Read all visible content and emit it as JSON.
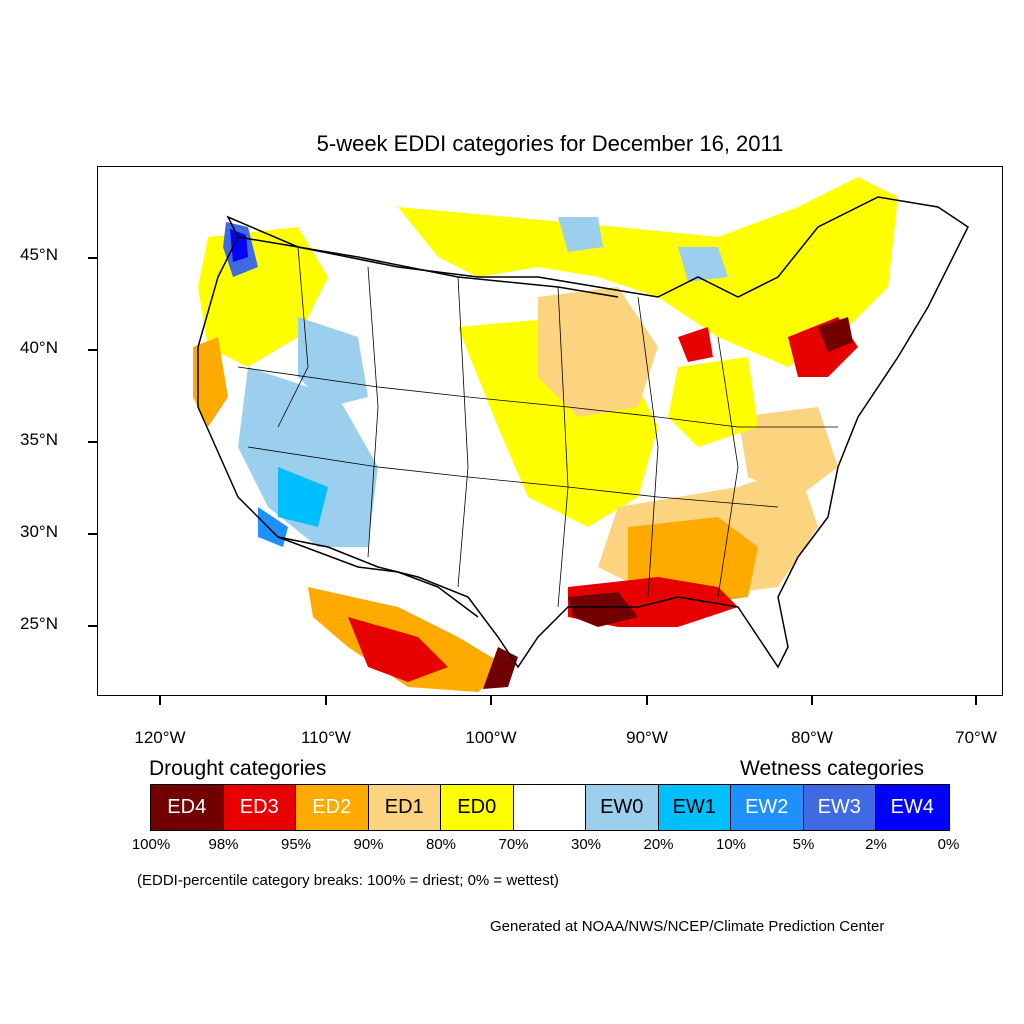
{
  "title": "5-week EDDI categories for December 16, 2011",
  "lat_labels": [
    "45°N",
    "40°N",
    "35°N",
    "30°N",
    "25°N"
  ],
  "lon_labels": [
    "120°W",
    "110°W",
    "100°W",
    "90°W",
    "80°W",
    "70°W"
  ],
  "legend": {
    "drought_heading": "Drought categories",
    "wetness_heading": "Wetness categories",
    "categories": [
      {
        "label": "ED4",
        "color": "#730000",
        "text_color": "#ffffff"
      },
      {
        "label": "ED3",
        "color": "#e60000",
        "text_color": "#ffffff"
      },
      {
        "label": "ED2",
        "color": "#ffaa00",
        "text_color": "#ffffff"
      },
      {
        "label": "ED1",
        "color": "#fcd37f",
        "text_color": "#000000"
      },
      {
        "label": "ED0",
        "color": "#ffff00",
        "text_color": "#000000"
      },
      {
        "label": "",
        "color": "#ffffff",
        "text_color": "#000000"
      },
      {
        "label": "EW0",
        "color": "#9ccfee",
        "text_color": "#000000"
      },
      {
        "label": "EW1",
        "color": "#00bfff",
        "text_color": "#000000"
      },
      {
        "label": "EW2",
        "color": "#1e90ff",
        "text_color": "#ffffff"
      },
      {
        "label": "EW3",
        "color": "#4169e1",
        "text_color": "#ffffff"
      },
      {
        "label": "EW4",
        "color": "#0000ff",
        "text_color": "#ffffff"
      }
    ],
    "percentiles": [
      "100%",
      "98%",
      "95%",
      "90%",
      "80%",
      "70%",
      "30%",
      "20%",
      "10%",
      "5%",
      "2%",
      "0%"
    ]
  },
  "note": "(EDDI-percentile category breaks: 100% = driest; 0% = wettest)",
  "credit": "Generated at NOAA/NWS/NCEP/Climate Prediction Center"
}
